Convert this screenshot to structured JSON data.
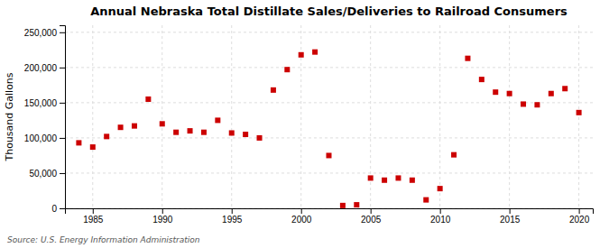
{
  "chart_data": {
    "type": "scatter",
    "title": "Annual Nebraska Total Distillate Sales/Deliveries to Railroad Consumers",
    "y_label": "Thousand Gallons",
    "annotations": [
      "Source: U.S. Energy Information Administration"
    ],
    "x": [
      1984,
      1985,
      1986,
      1987,
      1988,
      1989,
      1990,
      1991,
      1992,
      1993,
      1994,
      1995,
      1996,
      1997,
      1998,
      1999,
      2000,
      2001,
      2002,
      2003,
      2004,
      2005,
      2006,
      2007,
      2008,
      2009,
      2010,
      2011,
      2012,
      2013,
      2014,
      2015,
      2016,
      2017,
      2018,
      2019,
      2020
    ],
    "values": [
      93000,
      87000,
      102000,
      115000,
      117000,
      155000,
      120000,
      108000,
      110000,
      108000,
      125000,
      107000,
      105000,
      100000,
      168000,
      197000,
      218000,
      222000,
      75000,
      4000,
      5000,
      43000,
      40000,
      43000,
      40000,
      12000,
      28000,
      76000,
      213000,
      183000,
      165000,
      163000,
      148000,
      147000,
      163000,
      170000,
      136000
    ],
    "color": "#cc0000",
    "marker": "square",
    "xlim": [
      1983,
      2021
    ],
    "xticks": [
      1985,
      1990,
      1995,
      2000,
      2005,
      2010,
      2015,
      2020
    ],
    "ylim": [
      0,
      260000
    ],
    "yticks": [
      0,
      {
        "value": 50000,
        "label": "50,000"
      },
      {
        "value": 100000,
        "label": "100,000"
      },
      {
        "value": 150000,
        "label": "150,000"
      },
      {
        "value": 200000,
        "label": "200,000"
      },
      {
        "value": 250000,
        "label": "250,000"
      }
    ],
    "grid": true
  }
}
